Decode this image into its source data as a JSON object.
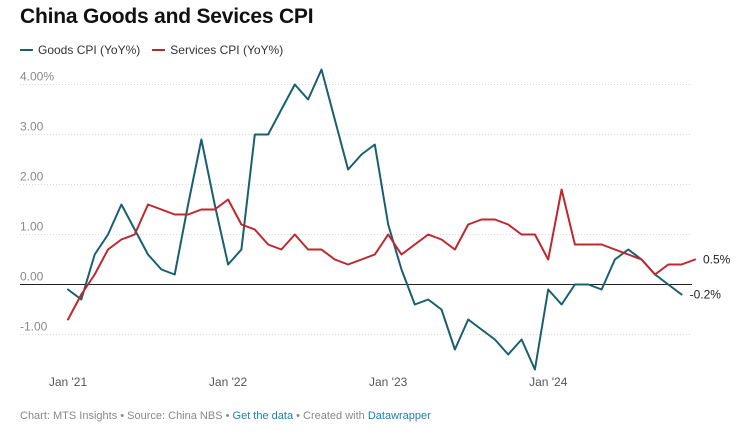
{
  "title": "China Goods and Sevices CPI",
  "footer": {
    "prefix": "Chart: MTS Insights • Source: China NBS • ",
    "link1": "Get the data",
    "middle": " • Created with ",
    "link2": "Datawrapper"
  },
  "chart_data": {
    "type": "line",
    "x_start": "2021-01",
    "x_tick_labels": [
      "Jan '21",
      "Jan '22",
      "Jan '23",
      "Jan '24"
    ],
    "y_ticks": [
      4.0,
      3.0,
      2.0,
      1.0,
      0.0,
      -1.0
    ],
    "y_tick_labels": [
      "4.00%",
      "3.00",
      "2.00",
      "1.00",
      "0.00",
      "-1.00"
    ],
    "ylim": [
      -1.7,
      4.3
    ],
    "series": [
      {
        "name": "Goods CPI (YoY%)",
        "color": "#1a5f70",
        "end_label": "-0.2%",
        "values": [
          -0.1,
          -0.3,
          0.6,
          1.0,
          1.6,
          1.1,
          0.6,
          0.3,
          0.2,
          1.6,
          2.9,
          1.6,
          0.4,
          0.7,
          3.0,
          3.0,
          3.5,
          4.0,
          3.7,
          4.3,
          3.3,
          2.3,
          2.6,
          2.8,
          1.2,
          0.3,
          -0.4,
          -0.3,
          -0.5,
          -1.3,
          -0.7,
          -0.9,
          -1.1,
          -1.4,
          -1.1,
          -1.7,
          -0.1,
          -0.4,
          0.0,
          0.0,
          -0.1,
          0.5,
          0.7,
          0.5,
          0.2,
          0.0,
          -0.2
        ]
      },
      {
        "name": "Services CPI (YoY%)",
        "color": "#c0272d",
        "end_label": "0.5%",
        "values": [
          -0.7,
          -0.2,
          0.2,
          0.7,
          0.9,
          1.0,
          1.6,
          1.5,
          1.4,
          1.4,
          1.5,
          1.5,
          1.7,
          1.2,
          1.1,
          0.8,
          0.7,
          1.0,
          0.7,
          0.7,
          0.5,
          0.4,
          0.5,
          0.6,
          1.0,
          0.6,
          0.8,
          1.0,
          0.9,
          0.7,
          1.2,
          1.3,
          1.3,
          1.2,
          1.0,
          1.0,
          0.5,
          1.9,
          0.8,
          0.8,
          0.8,
          0.7,
          0.6,
          0.5,
          0.2,
          0.4,
          0.4,
          0.5
        ]
      }
    ],
    "grid": true
  }
}
